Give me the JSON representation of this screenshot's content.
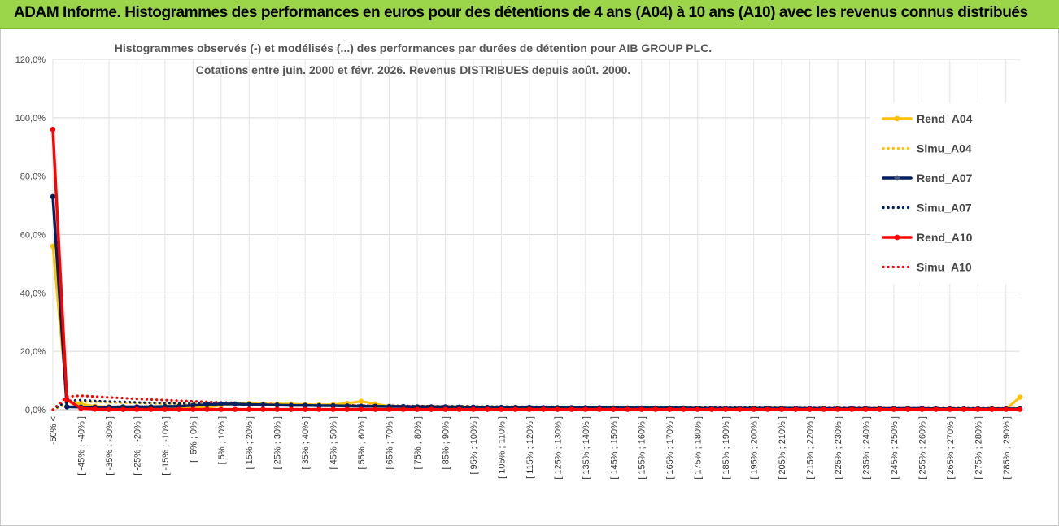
{
  "banner": {
    "text": "ADAM Informe. Histogrammes des performances en euros pour des détentions de 4 ans (A04) à 10 ans (A10) avec les revenus connus distribués"
  },
  "colors": {
    "banner_bg": "#9bd64a",
    "A04": "#ffc000",
    "A07": "#002060",
    "A10": "#ff0000"
  },
  "chart_data": {
    "type": "line",
    "title_line1": "Histogrammes observés (-) et modélisés (...) des performances par durées de détention pour AIB GROUP PLC.",
    "title_line2": "Cotations entre juin. 2000 et févr. 2026. Revenus DISTRIBUES depuis août. 2000.",
    "ylim": [
      0,
      1.2
    ],
    "yticks": [
      "0,0%",
      "20,0%",
      "40,0%",
      "60,0%",
      "80,0%",
      "100,0%",
      "120,0%"
    ],
    "grid": true,
    "legend_position": "right",
    "categories": [
      "-50% <",
      "[ -50% ; -45% ]",
      "[ -45% ; -40% ]",
      "[ -40% ; -35% ]",
      "[ -35% ; -30% ]",
      "[ -30% ; -25% ]",
      "[ -25% ; -20% ]",
      "[ -20% ; -15% ]",
      "[ -15% ; -10% ]",
      "[ -10% ; -5% ]",
      "[ -5% ; 0% ]",
      "[ 0% ; 5% ]",
      "[ 5% ; 10% ]",
      "[ 10% ; 15% ]",
      "[ 15% ; 20% ]",
      "[ 20% ; 25% ]",
      "[ 25% ; 30% ]",
      "[ 30% ; 35% ]",
      "[ 35% ; 40% ]",
      "[ 40% ; 45% ]",
      "[ 45% ; 50% ]",
      "[ 50% ; 55% ]",
      "[ 55% ; 60% ]",
      "[ 60% ; 65% ]",
      "[ 65% ; 70% ]",
      "[ 70% ; 75% ]",
      "[ 75% ; 80% ]",
      "[ 80% ; 85% ]",
      "[ 85% ; 90% ]",
      "[ 90% ; 95% ]",
      "[ 95% ; 100% ]",
      "[ 100% ; 105% ]",
      "[ 105% ; 110% ]",
      "[ 110% ; 115% ]",
      "[ 115% ; 120% ]",
      "[ 120% ; 125% ]",
      "[ 125% ; 130% ]",
      "[ 130% ; 135% ]",
      "[ 135% ; 140% ]",
      "[ 140% ; 145% ]",
      "[ 145% ; 150% ]",
      "[ 150% ; 155% ]",
      "[ 155% ; 160% ]",
      "[ 160% ; 165% ]",
      "[ 165% ; 170% ]",
      "[ 170% ; 175% ]",
      "[ 175% ; 180% ]",
      "[ 180% ; 185% ]",
      "[ 185% ; 190% ]",
      "[ 190% ; 195% ]",
      "[ 195% ; 200% ]",
      "[ 200% ; 205% ]",
      "[ 205% ; 210% ]",
      "[ 210% ; 215% ]",
      "[ 215% ; 220% ]",
      "[ 220% ; 225% ]",
      "[ 225% ; 230% ]",
      "[ 230% ; 235% ]",
      "[ 235% ; 240% ]",
      "[ 240% ; 245% ]",
      "[ 245% ; 250% ]",
      "[ 250% ; 255% ]",
      "[ 255% ; 260% ]",
      "[ 260% ; 265% ]",
      "[ 265% ; 270% ]",
      "[ 270% ; 275% ]",
      "[ 275% ; 280% ]",
      "[ 280% ; 285% ]",
      "[ 285% ; 290% ]",
      "290% <"
    ],
    "series": [
      {
        "name": "Rend_A04",
        "style": "solid",
        "color": "#ffc000",
        "values": [
          0.56,
          0.03,
          0.02,
          0.012,
          0.01,
          0.009,
          0.008,
          0.008,
          0.008,
          0.007,
          0.007,
          0.008,
          0.015,
          0.02,
          0.022,
          0.02,
          0.02,
          0.02,
          0.018,
          0.017,
          0.018,
          0.022,
          0.029,
          0.02,
          0.012,
          0.01,
          0.009,
          0.008,
          0.007,
          0.006,
          0.006,
          0.006,
          0.006,
          0.006,
          0.005,
          0.005,
          0.005,
          0.005,
          0.005,
          0.005,
          0.004,
          0.004,
          0.004,
          0.004,
          0.004,
          0.004,
          0.004,
          0.004,
          0.003,
          0.003,
          0.003,
          0.003,
          0.003,
          0.003,
          0.003,
          0.003,
          0.003,
          0.003,
          0.003,
          0.003,
          0.003,
          0.003,
          0.003,
          0.002,
          0.002,
          0.002,
          0.002,
          0.002,
          0.002,
          0.043
        ]
      },
      {
        "name": "Simu_A04",
        "style": "dotted",
        "color": "#ffc000",
        "values": [
          0.0,
          0.02,
          0.028,
          0.027,
          0.025,
          0.024,
          0.023,
          0.022,
          0.021,
          0.021,
          0.02,
          0.02,
          0.02,
          0.019,
          0.019,
          0.018,
          0.018,
          0.017,
          0.017,
          0.016,
          0.016,
          0.015,
          0.015,
          0.014,
          0.014,
          0.013,
          0.013,
          0.013,
          0.012,
          0.012,
          0.012,
          0.011,
          0.011,
          0.011,
          0.01,
          0.01,
          0.01,
          0.01,
          0.009,
          0.009,
          0.009,
          0.009,
          0.008,
          0.008,
          0.008,
          0.008,
          0.008,
          0.007,
          0.007,
          0.007,
          0.007,
          0.007,
          0.007,
          0.006,
          0.006,
          0.006,
          0.006,
          0.006,
          0.006,
          0.006,
          0.005,
          0.005,
          0.005,
          0.005,
          0.005,
          0.005,
          0.005,
          0.005,
          0.005,
          0.005
        ]
      },
      {
        "name": "Rend_A07",
        "style": "solid",
        "color": "#002060",
        "values": [
          0.73,
          0.01,
          0.009,
          0.009,
          0.009,
          0.01,
          0.01,
          0.01,
          0.011,
          0.012,
          0.015,
          0.017,
          0.02,
          0.02,
          0.018,
          0.017,
          0.016,
          0.015,
          0.015,
          0.014,
          0.014,
          0.013,
          0.012,
          0.012,
          0.011,
          0.011,
          0.01,
          0.01,
          0.01,
          0.009,
          0.009,
          0.008,
          0.008,
          0.008,
          0.008,
          0.007,
          0.007,
          0.007,
          0.007,
          0.007,
          0.006,
          0.006,
          0.006,
          0.006,
          0.006,
          0.006,
          0.005,
          0.005,
          0.005,
          0.005,
          0.005,
          0.005,
          0.005,
          0.005,
          0.004,
          0.004,
          0.004,
          0.004,
          0.004,
          0.004,
          0.004,
          0.004,
          0.004,
          0.003,
          0.003,
          0.003,
          0.003,
          0.003,
          0.003,
          0.003
        ]
      },
      {
        "name": "Simu_A07",
        "style": "dotted",
        "color": "#002060",
        "values": [
          0.0,
          0.03,
          0.033,
          0.03,
          0.028,
          0.027,
          0.025,
          0.024,
          0.023,
          0.022,
          0.021,
          0.021,
          0.02,
          0.019,
          0.019,
          0.018,
          0.018,
          0.017,
          0.016,
          0.016,
          0.015,
          0.015,
          0.014,
          0.014,
          0.014,
          0.013,
          0.013,
          0.012,
          0.012,
          0.012,
          0.011,
          0.011,
          0.011,
          0.01,
          0.01,
          0.01,
          0.01,
          0.009,
          0.009,
          0.009,
          0.009,
          0.008,
          0.008,
          0.008,
          0.008,
          0.008,
          0.007,
          0.007,
          0.007,
          0.007,
          0.007,
          0.007,
          0.006,
          0.006,
          0.006,
          0.006,
          0.006,
          0.006,
          0.006,
          0.005,
          0.005,
          0.005,
          0.005,
          0.005,
          0.005,
          0.005,
          0.005,
          0.005,
          0.004,
          0.004
        ]
      },
      {
        "name": "Rend_A10",
        "style": "solid",
        "color": "#ff0000",
        "values": [
          0.96,
          0.035,
          0.005,
          0.002,
          0.001,
          0.001,
          0.001,
          0.001,
          0.001,
          0.001,
          0.001,
          0.001,
          0.001,
          0.001,
          0.001,
          0.001,
          0.001,
          0.001,
          0.001,
          0.001,
          0.001,
          0.001,
          0.001,
          0.001,
          0.001,
          0.001,
          0.001,
          0.001,
          0.001,
          0.001,
          0.001,
          0.001,
          0.001,
          0.001,
          0.001,
          0.001,
          0.001,
          0.001,
          0.001,
          0.001,
          0.001,
          0.001,
          0.001,
          0.001,
          0.001,
          0.001,
          0.001,
          0.001,
          0.001,
          0.001,
          0.001,
          0.001,
          0.001,
          0.001,
          0.001,
          0.001,
          0.001,
          0.001,
          0.001,
          0.001,
          0.001,
          0.001,
          0.001,
          0.001,
          0.001,
          0.001,
          0.001,
          0.001,
          0.001,
          0.001
        ]
      },
      {
        "name": "Simu_A10",
        "style": "dotted",
        "color": "#ff0000",
        "values": [
          0.0,
          0.045,
          0.048,
          0.045,
          0.042,
          0.04,
          0.037,
          0.035,
          0.033,
          0.031,
          0.029,
          0.027,
          0.025,
          0.024,
          0.022,
          0.021,
          0.02,
          0.019,
          0.018,
          0.017,
          0.016,
          0.015,
          0.014,
          0.013,
          0.013,
          0.012,
          0.012,
          0.011,
          0.011,
          0.01,
          0.01,
          0.009,
          0.009,
          0.009,
          0.008,
          0.008,
          0.008,
          0.007,
          0.007,
          0.007,
          0.007,
          0.006,
          0.006,
          0.006,
          0.006,
          0.006,
          0.005,
          0.005,
          0.005,
          0.005,
          0.005,
          0.005,
          0.005,
          0.004,
          0.004,
          0.004,
          0.004,
          0.004,
          0.004,
          0.004,
          0.004,
          0.004,
          0.003,
          0.003,
          0.003,
          0.003,
          0.003,
          0.003,
          0.003,
          0.003
        ]
      }
    ]
  }
}
